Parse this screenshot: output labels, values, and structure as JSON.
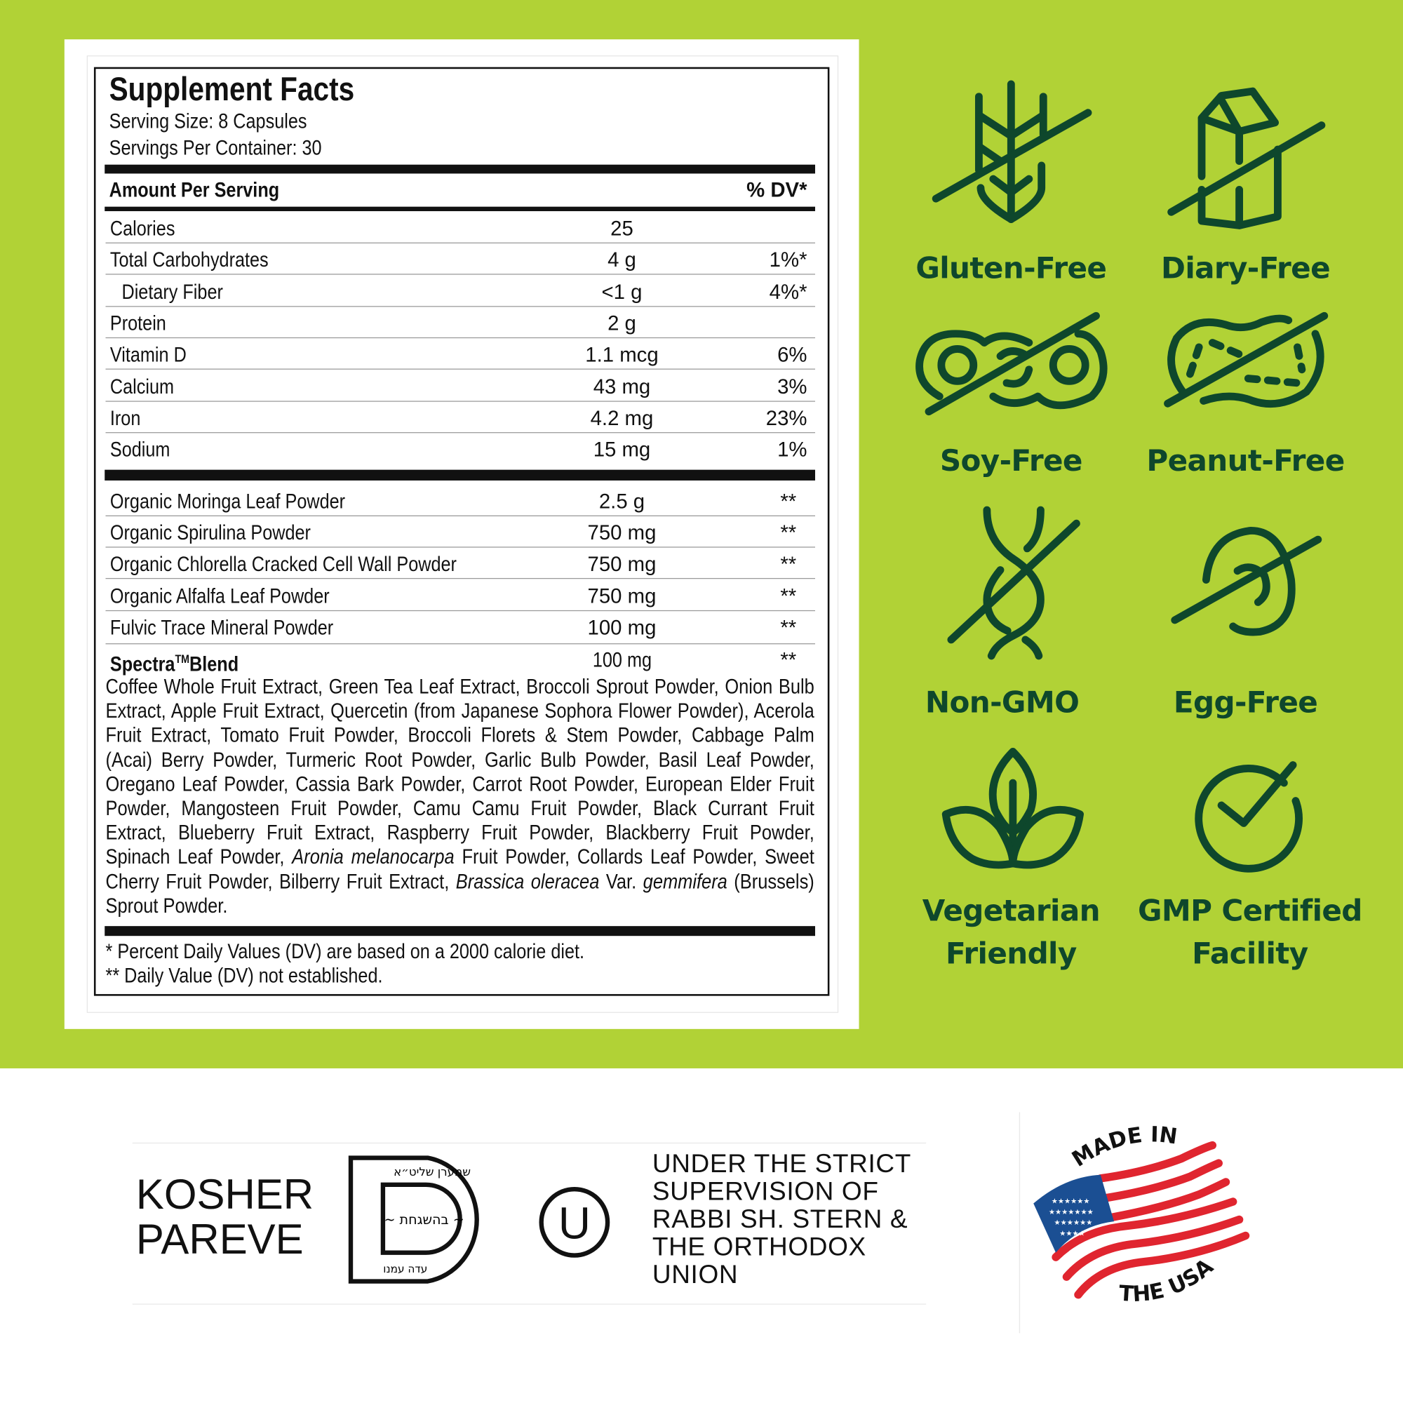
{
  "colors": {
    "background_green": "#b1d236",
    "icon_dark_green": "#0e472c",
    "flag_red": "#e0252f",
    "flag_blue": "#1b4f93"
  },
  "facts": {
    "title": "Supplement Facts",
    "serving_size": "Serving Size: 8 Capsules",
    "servings_per_container": "Servings Per Container: 30",
    "amount_per_serving": "Amount Per Serving",
    "dv_header": "% DV*",
    "nutrients": [
      {
        "name": "Calories",
        "amount": "25",
        "dv": ""
      },
      {
        "name": "Total Carbohydrates",
        "amount": "4 g",
        "dv": "1%*"
      },
      {
        "name": "Dietary Fiber",
        "amount": "<1 g",
        "dv": "4%*"
      },
      {
        "name": "Protein",
        "amount": "2 g",
        "dv": ""
      },
      {
        "name": "Vitamin D",
        "amount": "1.1 mcg",
        "dv": "6%"
      },
      {
        "name": "Calcium",
        "amount": "43 mg",
        "dv": "3%"
      },
      {
        "name": "Iron",
        "amount": "4.2 mg",
        "dv": "23%"
      },
      {
        "name": "Sodium",
        "amount": "15 mg",
        "dv": "1%"
      }
    ],
    "ingredients": [
      {
        "name": "Organic Moringa Leaf Powder",
        "amount": "2.5 g",
        "dv": "**"
      },
      {
        "name": "Organic Spirulina Powder",
        "amount": "750 mg",
        "dv": "**"
      },
      {
        "name": "Organic Chlorella Cracked Cell Wall Powder",
        "amount": "750 mg",
        "dv": "**"
      },
      {
        "name": "Organic Alfalfa Leaf Powder",
        "amount": "750 mg",
        "dv": "**"
      },
      {
        "name": "Fulvic Trace Mineral Powder",
        "amount": "100 mg",
        "dv": "**"
      }
    ],
    "blend": {
      "name": "Spectra",
      "tm": "TM",
      "name_suffix": " Blend",
      "amount": "100 mg",
      "dv": "**",
      "text_1": "Coffee Whole Fruit Extract, Green Tea Leaf Extract, Broccoli Sprout Powder, Onion Bulb Extract, Apple Fruit Extract, Quercetin (from Japanese Sophora Flower Powder), Acerola Fruit Extract, Tomato Fruit Powder, Broccoli Florets & Stem Powder, Cabbage Palm (Acai) Berry Powder, Turmeric Root Powder, Garlic Bulb Powder, Basil Leaf Powder, Oregano Leaf Powder, Cassia Bark Powder, Carrot Root Powder, European Elder Fruit Powder, Mangosteen Fruit Powder, Camu Camu Fruit Powder, Black Currant Fruit Extract, Blueberry Fruit Extract, Raspberry Fruit Powder, Blackberry Fruit Powder, Spinach Leaf Powder, ",
      "italic_1": "Aronia melanocarpa",
      "text_2": " Fruit Powder, Collards Leaf Powder, Sweet Cherry Fruit Powder, Bilberry Fruit Extract, ",
      "italic_2": "Brassica oleracea",
      "text_3": " Var. ",
      "italic_3": "gemmifera",
      "text_4": " (Brussels) Sprout Powder."
    },
    "footnote_1": "* Percent Daily Values (DV) are based on a 2000 calorie diet.",
    "footnote_2": "** Daily Value (DV) not established."
  },
  "badges": [
    {
      "label": "Gluten-Free",
      "icon": "wheat-crossed-icon"
    },
    {
      "label": "Diary-Free",
      "icon": "milk-carton-crossed-icon"
    },
    {
      "label": "Soy-Free",
      "icon": "soybean-crossed-icon"
    },
    {
      "label": "Peanut-Free",
      "icon": "peanut-crossed-icon"
    },
    {
      "label": "Non-GMO",
      "icon": "dna-crossed-icon"
    },
    {
      "label": "Egg-Free",
      "icon": "egg-crossed-icon"
    },
    {
      "label_line1": "Vegetarian",
      "label_line2": "Friendly",
      "icon": "leaves-icon"
    },
    {
      "label_line1": "GMP Certified",
      "label_line2": "Facility",
      "icon": "check-circle-icon"
    }
  ],
  "certification": {
    "kosher_line1": "KOSHER",
    "kosher_line2": "PAREVE",
    "kosher_logo": "D seal with Hebrew lettering",
    "ou_logo": "U",
    "supervision_lines": [
      "UNDER THE STRICT",
      "SUPERVISION OF",
      "RABBI SH. STERN &",
      "THE ORTHODOX",
      "UNION"
    ],
    "made_in_top": "MADE IN",
    "made_in_bottom": "THE USA"
  }
}
